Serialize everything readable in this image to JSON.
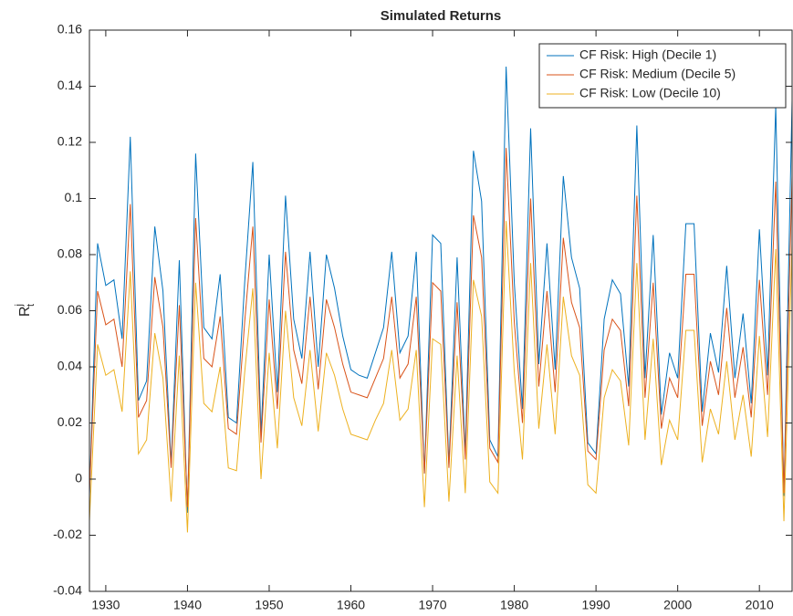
{
  "chart_data": {
    "type": "line",
    "title": "Simulated Returns",
    "ylabel": {
      "base": "R",
      "sup": "j",
      "sub": "t"
    },
    "x": [
      1928,
      1929,
      1930,
      1931,
      1932,
      1933,
      1934,
      1935,
      1936,
      1937,
      1938,
      1939,
      1940,
      1941,
      1942,
      1943,
      1944,
      1945,
      1946,
      1947,
      1948,
      1949,
      1950,
      1951,
      1952,
      1953,
      1954,
      1955,
      1956,
      1957,
      1958,
      1959,
      1960,
      1961,
      1962,
      1963,
      1964,
      1965,
      1966,
      1967,
      1968,
      1969,
      1970,
      1971,
      1972,
      1973,
      1974,
      1975,
      1976,
      1977,
      1978,
      1979,
      1980,
      1981,
      1982,
      1983,
      1984,
      1985,
      1986,
      1987,
      1988,
      1989,
      1990,
      1991,
      1992,
      1993,
      1994,
      1995,
      1996,
      1997,
      1998,
      1999,
      2000,
      2001,
      2002,
      2003,
      2004,
      2005,
      2006,
      2007,
      2008,
      2009,
      2010,
      2011,
      2012,
      2013,
      2014
    ],
    "series": [
      {
        "name": "CF Risk: High (Decile 1)",
        "color": "#0072BD",
        "values": [
          -0.006,
          0.084,
          0.069,
          0.071,
          0.05,
          0.122,
          0.028,
          0.035,
          0.09,
          0.067,
          0.005,
          0.078,
          -0.012,
          0.116,
          0.054,
          0.05,
          0.073,
          0.022,
          0.02,
          0.07,
          0.113,
          0.016,
          0.08,
          0.031,
          0.101,
          0.057,
          0.043,
          0.081,
          0.04,
          0.08,
          0.068,
          0.051,
          0.039,
          0.037,
          0.036,
          0.045,
          0.054,
          0.081,
          0.045,
          0.051,
          0.081,
          0.002,
          0.087,
          0.084,
          0.005,
          0.079,
          0.009,
          0.117,
          0.099,
          0.014,
          0.008,
          0.147,
          0.07,
          0.025,
          0.125,
          0.041,
          0.084,
          0.039,
          0.108,
          0.079,
          0.068,
          0.013,
          0.009,
          0.057,
          0.071,
          0.066,
          0.033,
          0.126,
          0.036,
          0.087,
          0.023,
          0.045,
          0.036,
          0.091,
          0.091,
          0.024,
          0.052,
          0.038,
          0.076,
          0.036,
          0.059,
          0.027,
          0.089,
          0.037,
          0.133,
          -0.006,
          0.135
        ]
      },
      {
        "name": "CF Risk: Medium (Decile 5)",
        "color": "#D95319",
        "values": [
          -0.005,
          0.067,
          0.055,
          0.057,
          0.04,
          0.098,
          0.022,
          0.028,
          0.072,
          0.054,
          0.004,
          0.062,
          -0.01,
          0.093,
          0.043,
          0.04,
          0.058,
          0.018,
          0.016,
          0.056,
          0.09,
          0.013,
          0.064,
          0.025,
          0.081,
          0.046,
          0.034,
          0.065,
          0.032,
          0.064,
          0.054,
          0.041,
          0.031,
          0.03,
          0.029,
          0.036,
          0.043,
          0.065,
          0.036,
          0.041,
          0.065,
          0.002,
          0.07,
          0.067,
          0.004,
          0.063,
          0.007,
          0.094,
          0.079,
          0.011,
          0.006,
          0.118,
          0.056,
          0.02,
          0.1,
          0.033,
          0.067,
          0.031,
          0.086,
          0.063,
          0.054,
          0.01,
          0.007,
          0.046,
          0.057,
          0.053,
          0.026,
          0.101,
          0.029,
          0.07,
          0.018,
          0.036,
          0.029,
          0.073,
          0.073,
          0.019,
          0.042,
          0.03,
          0.061,
          0.029,
          0.047,
          0.022,
          0.071,
          0.03,
          0.106,
          -0.005,
          0.108
        ]
      },
      {
        "name": "CF Risk: Low (Decile 10)",
        "color": "#EDB120",
        "values": [
          -0.015,
          0.048,
          0.037,
          0.039,
          0.024,
          0.074,
          0.009,
          0.014,
          0.052,
          0.036,
          -0.008,
          0.044,
          -0.019,
          0.07,
          0.027,
          0.024,
          0.04,
          0.004,
          0.003,
          0.038,
          0.068,
          0.0,
          0.045,
          0.011,
          0.06,
          0.029,
          0.019,
          0.046,
          0.017,
          0.045,
          0.037,
          0.025,
          0.016,
          0.015,
          0.014,
          0.021,
          0.027,
          0.046,
          0.021,
          0.025,
          0.046,
          -0.01,
          0.05,
          0.048,
          -0.008,
          0.044,
          -0.005,
          0.071,
          0.058,
          -0.001,
          -0.005,
          0.092,
          0.038,
          0.007,
          0.077,
          0.018,
          0.048,
          0.016,
          0.065,
          0.044,
          0.037,
          -0.002,
          -0.005,
          0.029,
          0.039,
          0.035,
          0.012,
          0.077,
          0.014,
          0.05,
          0.005,
          0.021,
          0.014,
          0.053,
          0.053,
          0.006,
          0.025,
          0.016,
          0.042,
          0.014,
          0.03,
          0.008,
          0.051,
          0.015,
          0.082,
          -0.015,
          0.084
        ]
      }
    ],
    "xlim": [
      1928,
      2014
    ],
    "xticks": [
      1930,
      1940,
      1950,
      1960,
      1970,
      1980,
      1990,
      2000,
      2010
    ],
    "ylim": [
      -0.04,
      0.16
    ],
    "yticks": [
      -0.04,
      -0.02,
      0,
      0.02,
      0.04,
      0.06,
      0.08,
      0.1,
      0.12,
      0.14,
      0.16
    ],
    "grid": false,
    "legend": "upper right"
  }
}
